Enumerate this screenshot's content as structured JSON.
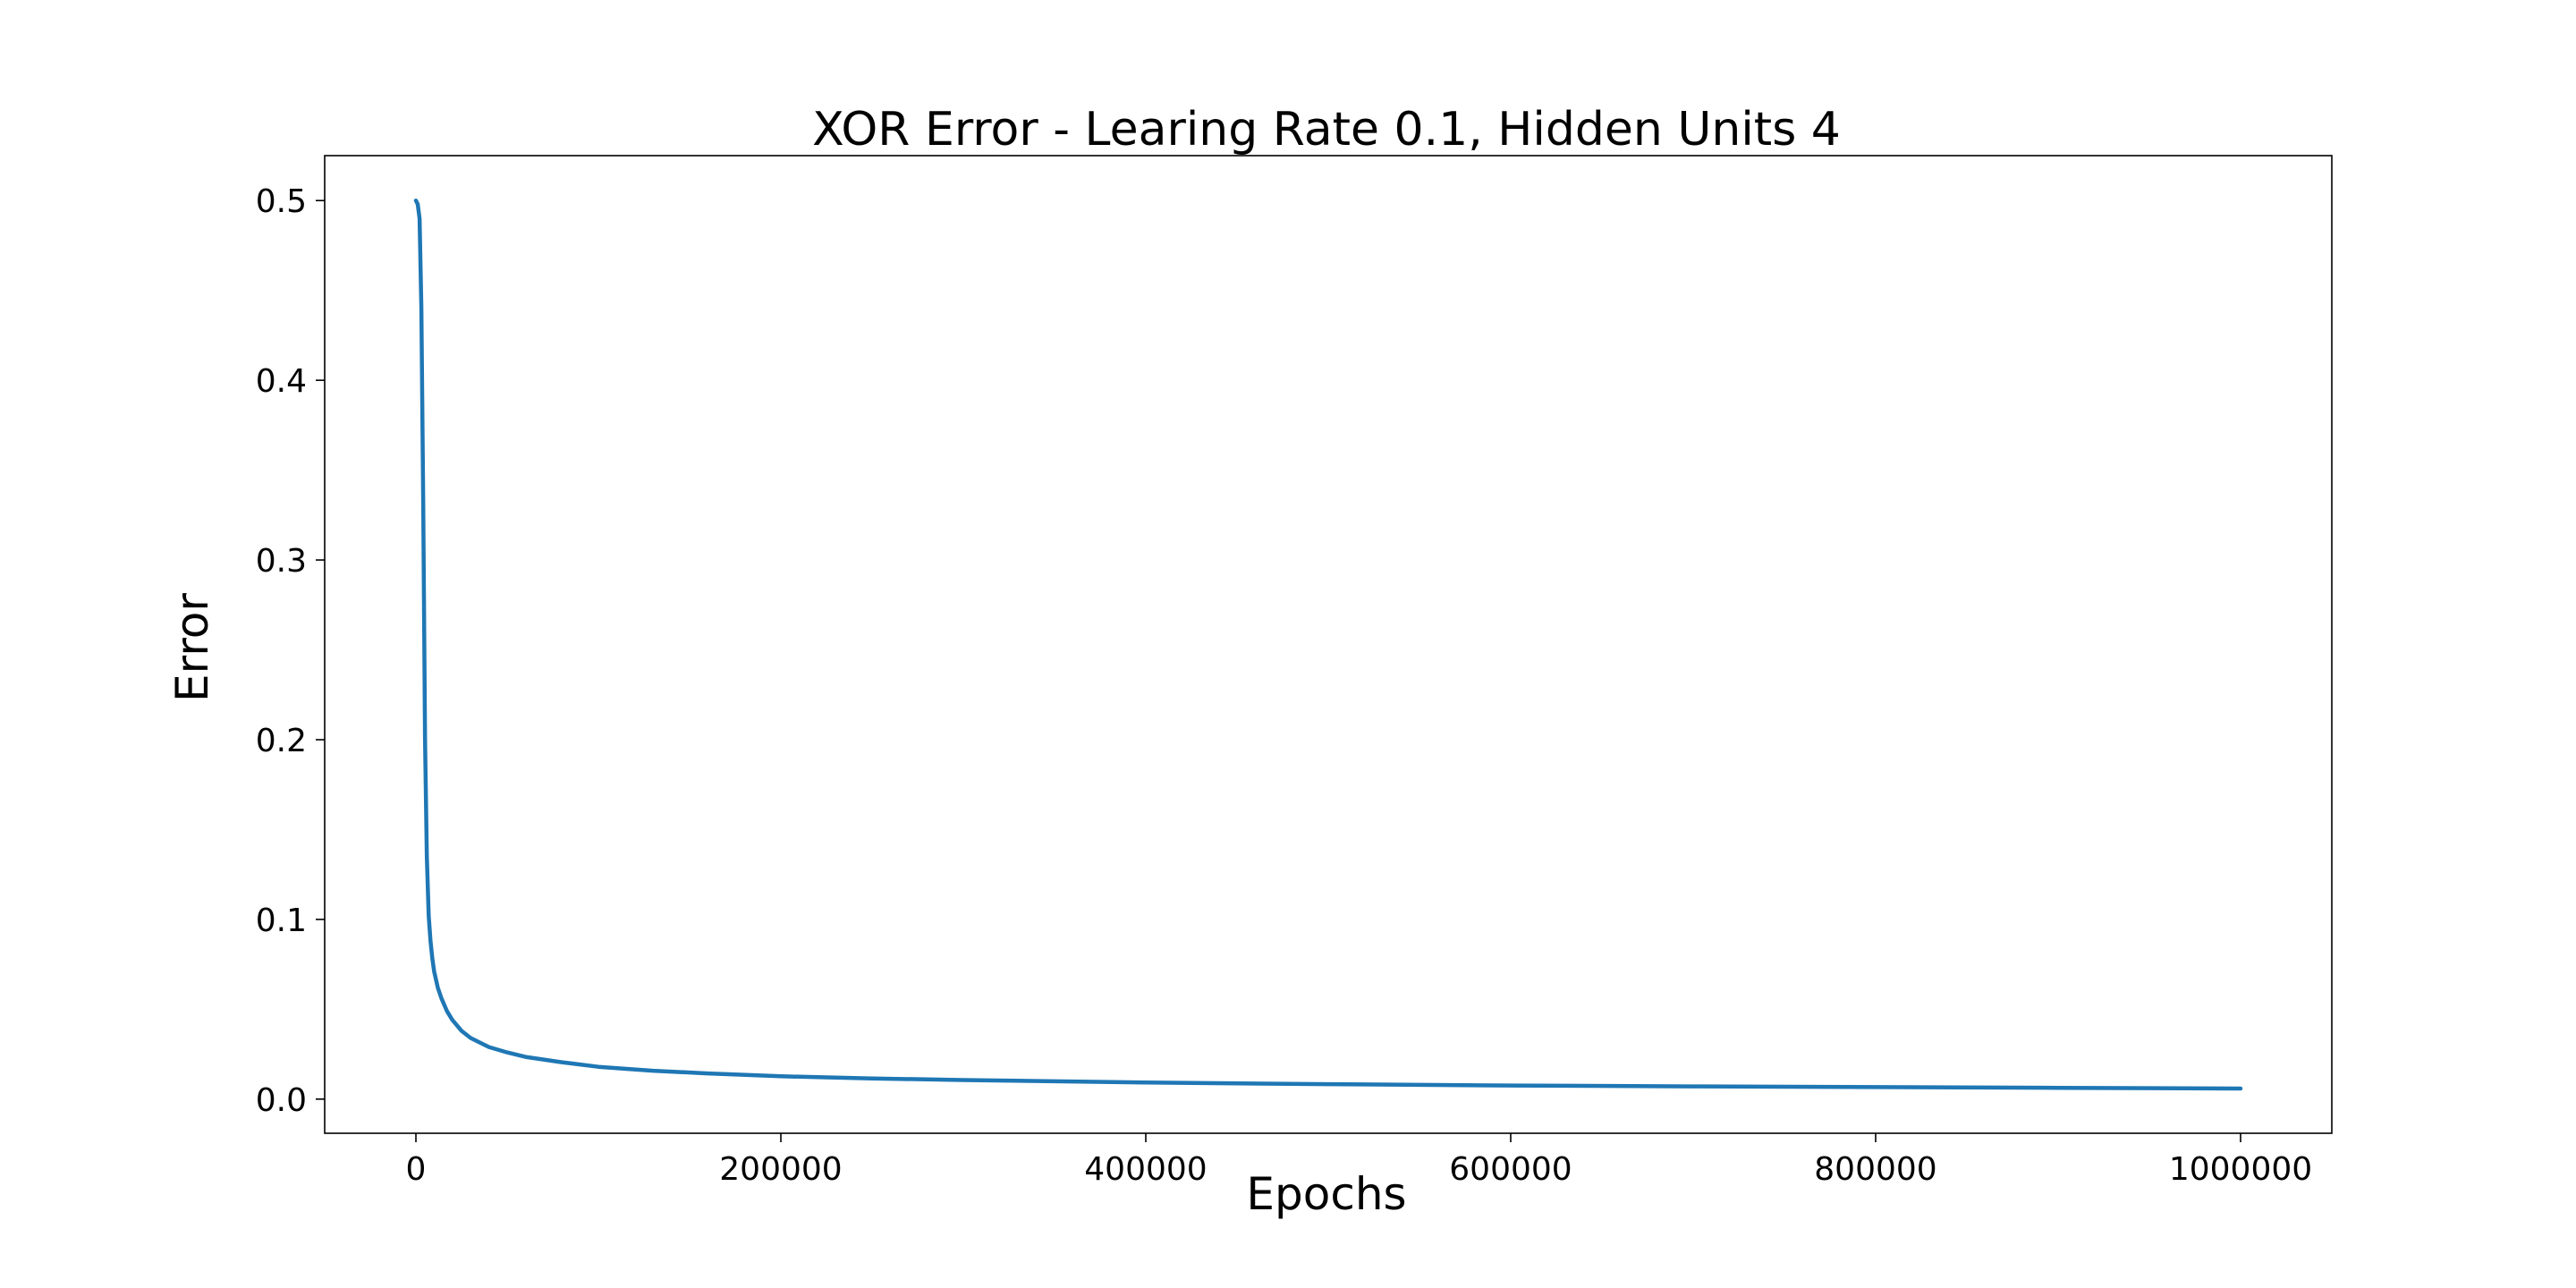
{
  "chart_data": {
    "type": "line",
    "title": "XOR Error - Learing Rate 0.1, Hidden Units 4",
    "xlabel": "Epochs",
    "ylabel": "Error",
    "xlim": [
      -50000,
      1050000
    ],
    "ylim": [
      -0.019,
      0.525
    ],
    "x_ticks": [
      0,
      200000,
      400000,
      600000,
      800000,
      1000000
    ],
    "y_ticks": [
      0.0,
      0.1,
      0.2,
      0.3,
      0.4,
      0.5
    ],
    "y_tick_labels": [
      "0.0",
      "0.1",
      "0.2",
      "0.3",
      "0.4",
      "0.5"
    ],
    "grid": false,
    "legend": "none",
    "series": [
      {
        "color": "#1f77b4",
        "x": [
          0,
          1000,
          2000,
          3000,
          4000,
          5000,
          6000,
          7000,
          8000,
          9000,
          10000,
          12000,
          14000,
          17000,
          20000,
          25000,
          30000,
          40000,
          50000,
          60000,
          80000,
          100000,
          130000,
          160000,
          200000,
          250000,
          300000,
          400000,
          500000,
          600000,
          700000,
          800000,
          900000,
          1000000
        ],
        "y": [
          0.5,
          0.498,
          0.49,
          0.44,
          0.33,
          0.2,
          0.135,
          0.102,
          0.088,
          0.078,
          0.071,
          0.062,
          0.056,
          0.049,
          0.044,
          0.038,
          0.034,
          0.029,
          0.026,
          0.0235,
          0.0205,
          0.018,
          0.0158,
          0.0143,
          0.0127,
          0.0115,
          0.0106,
          0.0092,
          0.0083,
          0.0076,
          0.0071,
          0.0067,
          0.0063,
          0.0059
        ]
      }
    ]
  }
}
